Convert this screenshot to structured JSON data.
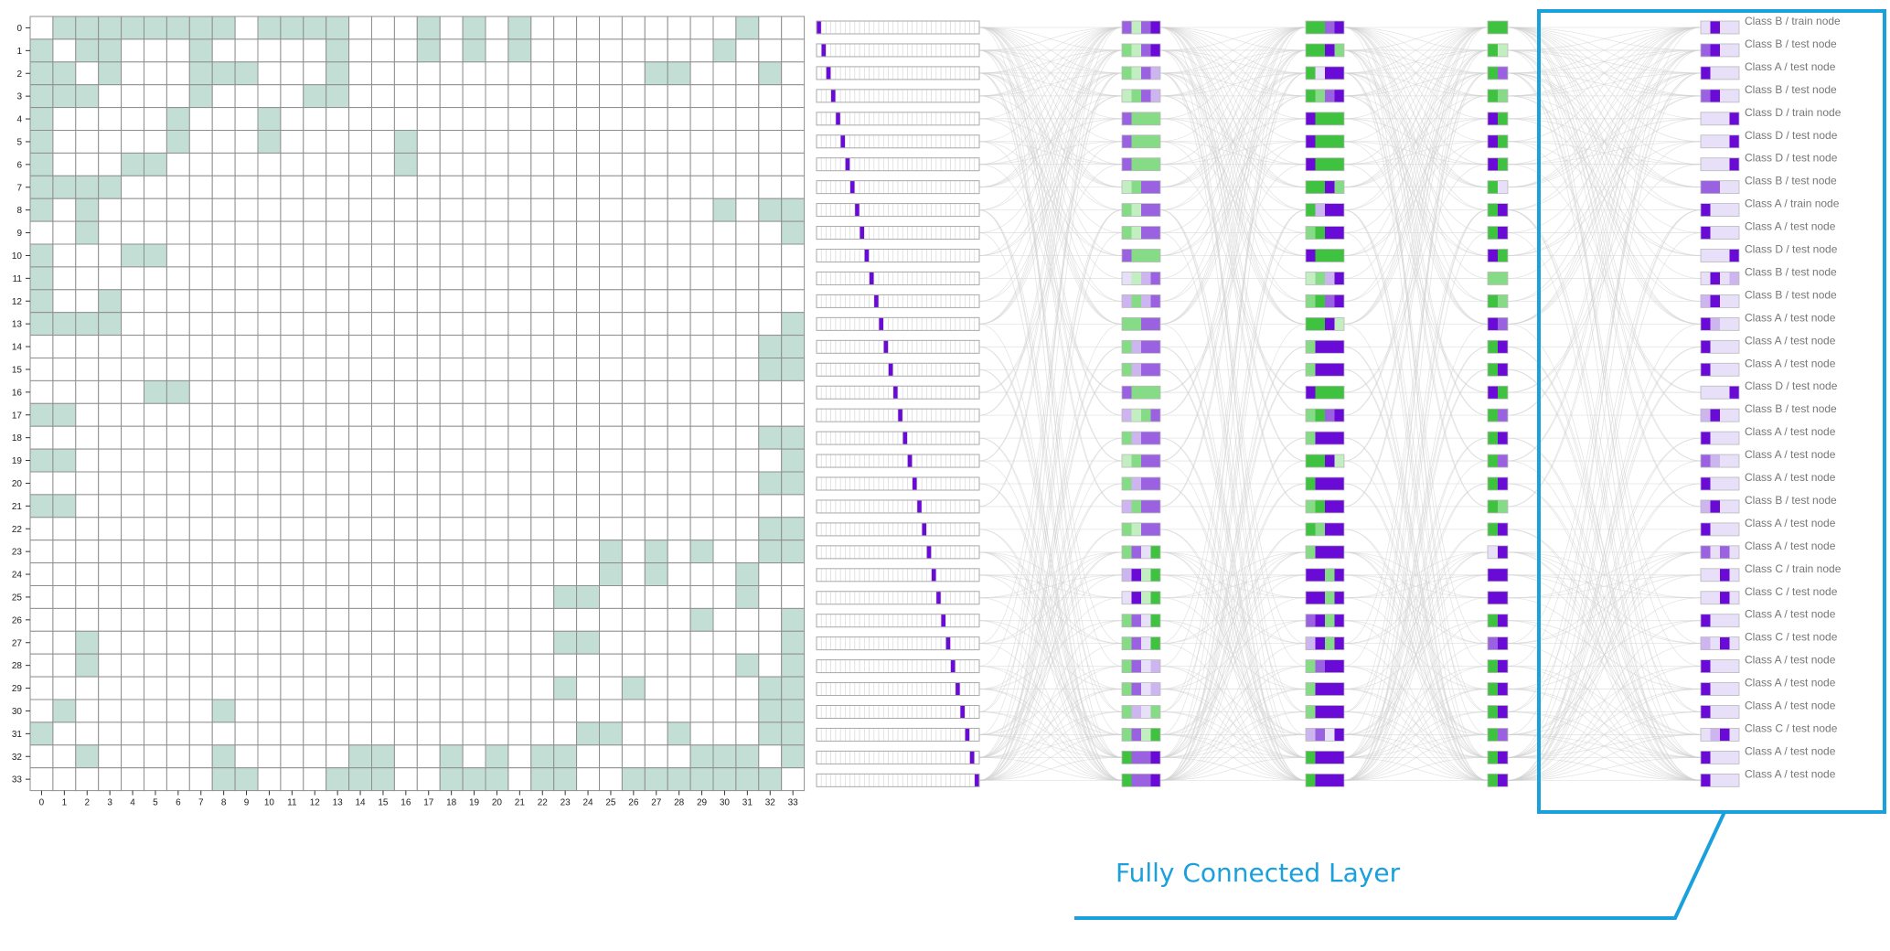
{
  "colors": {
    "matrix_fill": "#c3dfd5",
    "matrix_grid": "#8f8f8f",
    "purple_dark": "#6a0ad6",
    "purple_mid": "#9a62e0",
    "purple_light": "#cdb5ef",
    "purple_pale": "#e7e0f8",
    "green_dark": "#3fc23f",
    "green_mid": "#86db86",
    "green_light": "#c2eec2",
    "edge": "#cfcfcf",
    "highlight": "#1aa0dc"
  },
  "adjacency": {
    "node_ids": [
      "0",
      "1",
      "2",
      "3",
      "4",
      "5",
      "6",
      "7",
      "8",
      "9",
      "10",
      "11",
      "12",
      "13",
      "14",
      "15",
      "16",
      "17",
      "18",
      "19",
      "20",
      "21",
      "22",
      "23",
      "24",
      "25",
      "26",
      "27",
      "28",
      "29",
      "30",
      "31",
      "32",
      "33"
    ],
    "edges": [
      [
        0,
        1
      ],
      [
        0,
        2
      ],
      [
        0,
        3
      ],
      [
        0,
        4
      ],
      [
        0,
        5
      ],
      [
        0,
        6
      ],
      [
        0,
        7
      ],
      [
        0,
        8
      ],
      [
        0,
        10
      ],
      [
        0,
        11
      ],
      [
        0,
        12
      ],
      [
        0,
        13
      ],
      [
        0,
        17
      ],
      [
        0,
        19
      ],
      [
        0,
        21
      ],
      [
        0,
        31
      ],
      [
        1,
        2
      ],
      [
        1,
        3
      ],
      [
        1,
        7
      ],
      [
        1,
        13
      ],
      [
        1,
        17
      ],
      [
        1,
        19
      ],
      [
        1,
        21
      ],
      [
        1,
        30
      ],
      [
        2,
        3
      ],
      [
        2,
        7
      ],
      [
        2,
        8
      ],
      [
        2,
        9
      ],
      [
        2,
        13
      ],
      [
        2,
        27
      ],
      [
        2,
        28
      ],
      [
        2,
        32
      ],
      [
        3,
        7
      ],
      [
        3,
        12
      ],
      [
        3,
        13
      ],
      [
        4,
        6
      ],
      [
        4,
        10
      ],
      [
        5,
        6
      ],
      [
        5,
        10
      ],
      [
        5,
        16
      ],
      [
        6,
        16
      ],
      [
        8,
        30
      ],
      [
        8,
        32
      ],
      [
        8,
        33
      ],
      [
        9,
        33
      ],
      [
        13,
        33
      ],
      [
        14,
        32
      ],
      [
        14,
        33
      ],
      [
        15,
        32
      ],
      [
        15,
        33
      ],
      [
        18,
        32
      ],
      [
        18,
        33
      ],
      [
        19,
        33
      ],
      [
        20,
        32
      ],
      [
        20,
        33
      ],
      [
        22,
        32
      ],
      [
        22,
        33
      ],
      [
        23,
        25
      ],
      [
        23,
        27
      ],
      [
        23,
        29
      ],
      [
        23,
        32
      ],
      [
        23,
        33
      ],
      [
        24,
        25
      ],
      [
        24,
        27
      ],
      [
        24,
        31
      ],
      [
        25,
        31
      ],
      [
        26,
        29
      ],
      [
        26,
        33
      ],
      [
        27,
        33
      ],
      [
        28,
        31
      ],
      [
        28,
        33
      ],
      [
        29,
        32
      ],
      [
        29,
        33
      ],
      [
        30,
        32
      ],
      [
        30,
        33
      ],
      [
        31,
        32
      ],
      [
        31,
        33
      ],
      [
        32,
        33
      ]
    ]
  },
  "layers": {
    "input": {
      "one_hot_index": [
        0,
        1,
        2,
        3,
        4,
        5,
        6,
        7,
        8,
        9,
        10,
        11,
        12,
        13,
        14,
        15,
        16,
        17,
        18,
        19,
        20,
        21,
        22,
        23,
        24,
        25,
        26,
        27,
        28,
        29,
        30,
        31,
        32,
        33
      ]
    },
    "hidden_1": [
      [
        "pm",
        "gl",
        "pm",
        "pd"
      ],
      [
        "gm",
        "gl",
        "pm",
        "pd"
      ],
      [
        "gm",
        "gl",
        "pm",
        "pl"
      ],
      [
        "gl",
        "gm",
        "pm",
        "pl"
      ],
      [
        "pm",
        "gm",
        "gm",
        "gm"
      ],
      [
        "pm",
        "gm",
        "gm",
        "gm"
      ],
      [
        "pm",
        "gm",
        "gm",
        "gm"
      ],
      [
        "gl",
        "gm",
        "pm",
        "pm"
      ],
      [
        "gm",
        "gl",
        "pm",
        "pm"
      ],
      [
        "gm",
        "gl",
        "pm",
        "pm"
      ],
      [
        "pm",
        "gm",
        "gm",
        "gm"
      ],
      [
        "pp",
        "gl",
        "pl",
        "pm"
      ],
      [
        "pl",
        "gm",
        "pl",
        "pm"
      ],
      [
        "gm",
        "gm",
        "pm",
        "pm"
      ],
      [
        "gm",
        "pl",
        "pm",
        "pm"
      ],
      [
        "gm",
        "pl",
        "pm",
        "pm"
      ],
      [
        "pm",
        "gm",
        "gm",
        "gm"
      ],
      [
        "pl",
        "gl",
        "gm",
        "pm"
      ],
      [
        "gm",
        "pl",
        "pm",
        "pm"
      ],
      [
        "gl",
        "gm",
        "pm",
        "pm"
      ],
      [
        "gm",
        "pl",
        "pm",
        "pm"
      ],
      [
        "pl",
        "gm",
        "pm",
        "pm"
      ],
      [
        "gm",
        "gl",
        "pm",
        "pm"
      ],
      [
        "gm",
        "pm",
        "pp",
        "gd"
      ],
      [
        "pl",
        "pd",
        "gl",
        "gd"
      ],
      [
        "pp",
        "pd",
        "gl",
        "gd"
      ],
      [
        "gm",
        "pm",
        "pp",
        "gd"
      ],
      [
        "gm",
        "pm",
        "pp",
        "gd"
      ],
      [
        "gm",
        "pm",
        "pp",
        "pl"
      ],
      [
        "gm",
        "pm",
        "pp",
        "pl"
      ],
      [
        "gm",
        "pl",
        "pp",
        "gm"
      ],
      [
        "gm",
        "pm",
        "gl",
        "gd"
      ],
      [
        "gd",
        "pm",
        "pm",
        "pd"
      ],
      [
        "gd",
        "pm",
        "pm",
        "pd"
      ]
    ],
    "hidden_2": [
      [
        "gd",
        "gd",
        "pm",
        "pd"
      ],
      [
        "gd",
        "gd",
        "pd",
        "gm"
      ],
      [
        "gd",
        "pp",
        "pd",
        "pd"
      ],
      [
        "gd",
        "gm",
        "pm",
        "pd"
      ],
      [
        "pd",
        "gd",
        "gd",
        "gd"
      ],
      [
        "pd",
        "gd",
        "gd",
        "gd"
      ],
      [
        "pd",
        "gd",
        "gd",
        "gd"
      ],
      [
        "gd",
        "gd",
        "pd",
        "gm"
      ],
      [
        "gd",
        "pl",
        "pd",
        "pd"
      ],
      [
        "gm",
        "gd",
        "pd",
        "pd"
      ],
      [
        "pd",
        "gd",
        "gd",
        "gd"
      ],
      [
        "gl",
        "gm",
        "pl",
        "pd"
      ],
      [
        "gm",
        "gd",
        "pm",
        "pd"
      ],
      [
        "gd",
        "gd",
        "pd",
        "gl"
      ],
      [
        "gm",
        "pd",
        "pd",
        "pd"
      ],
      [
        "gm",
        "pd",
        "pd",
        "pd"
      ],
      [
        "pd",
        "gd",
        "gd",
        "gd"
      ],
      [
        "gm",
        "gd",
        "pm",
        "pd"
      ],
      [
        "gm",
        "pd",
        "pd",
        "pd"
      ],
      [
        "gd",
        "gd",
        "pd",
        "gl"
      ],
      [
        "gd",
        "pd",
        "pd",
        "pd"
      ],
      [
        "gm",
        "gd",
        "pd",
        "pd"
      ],
      [
        "gd",
        "gm",
        "pd",
        "pd"
      ],
      [
        "gm",
        "pd",
        "pd",
        "pd"
      ],
      [
        "pd",
        "pd",
        "gm",
        "pd"
      ],
      [
        "pd",
        "pd",
        "gm",
        "pd"
      ],
      [
        "pm",
        "pd",
        "gm",
        "pd"
      ],
      [
        "pl",
        "pd",
        "gm",
        "pd"
      ],
      [
        "gm",
        "pm",
        "pd",
        "pd"
      ],
      [
        "gm",
        "pd",
        "pd",
        "pd"
      ],
      [
        "gm",
        "pd",
        "pd",
        "pd"
      ],
      [
        "pl",
        "pm",
        "pp",
        "pd"
      ],
      [
        "gd",
        "pd",
        "pd",
        "pd"
      ],
      [
        "gd",
        "pd",
        "pd",
        "pd"
      ]
    ],
    "hidden_3": [
      [
        "gd",
        "gd"
      ],
      [
        "gd",
        "gl"
      ],
      [
        "gd",
        "pm"
      ],
      [
        "gd",
        "gm"
      ],
      [
        "pd",
        "gd"
      ],
      [
        "pd",
        "gd"
      ],
      [
        "pd",
        "gd"
      ],
      [
        "gd",
        "pp"
      ],
      [
        "gd",
        "pd"
      ],
      [
        "gd",
        "pd"
      ],
      [
        "pd",
        "gd"
      ],
      [
        "gm",
        "gm"
      ],
      [
        "gd",
        "gm"
      ],
      [
        "pd",
        "pm"
      ],
      [
        "gd",
        "pd"
      ],
      [
        "gd",
        "pd"
      ],
      [
        "pd",
        "gd"
      ],
      [
        "gd",
        "pm"
      ],
      [
        "gd",
        "pd"
      ],
      [
        "gd",
        "pm"
      ],
      [
        "gd",
        "pd"
      ],
      [
        "gd",
        "gm"
      ],
      [
        "gd",
        "pd"
      ],
      [
        "pp",
        "pd"
      ],
      [
        "pd",
        "pd"
      ],
      [
        "pd",
        "pd"
      ],
      [
        "gd",
        "pd"
      ],
      [
        "pm",
        "pd"
      ],
      [
        "gd",
        "pd"
      ],
      [
        "gd",
        "pd"
      ],
      [
        "gd",
        "pd"
      ],
      [
        "gd",
        "pm"
      ],
      [
        "gd",
        "pd"
      ],
      [
        "gd",
        "pd"
      ]
    ],
    "output": [
      [
        "pp",
        "pd",
        "pp",
        "pp"
      ],
      [
        "pm",
        "pd",
        "pp",
        "pp"
      ],
      [
        "pd",
        "pp",
        "pp",
        "pp"
      ],
      [
        "pm",
        "pd",
        "pp",
        "pp"
      ],
      [
        "pp",
        "pp",
        "pp",
        "pd"
      ],
      [
        "pp",
        "pp",
        "pp",
        "pd"
      ],
      [
        "pp",
        "pp",
        "pp",
        "pd"
      ],
      [
        "pm",
        "pm",
        "pp",
        "pp"
      ],
      [
        "pd",
        "pp",
        "pp",
        "pp"
      ],
      [
        "pd",
        "pp",
        "pp",
        "pp"
      ],
      [
        "pp",
        "pp",
        "pp",
        "pd"
      ],
      [
        "pp",
        "pd",
        "pp",
        "pl"
      ],
      [
        "pl",
        "pd",
        "pp",
        "pp"
      ],
      [
        "pd",
        "pl",
        "pp",
        "pp"
      ],
      [
        "pd",
        "pp",
        "pp",
        "pp"
      ],
      [
        "pd",
        "pp",
        "pp",
        "pp"
      ],
      [
        "pp",
        "pp",
        "pp",
        "pd"
      ],
      [
        "pl",
        "pd",
        "pp",
        "pp"
      ],
      [
        "pd",
        "pp",
        "pp",
        "pp"
      ],
      [
        "pm",
        "pl",
        "pp",
        "pp"
      ],
      [
        "pd",
        "pp",
        "pp",
        "pp"
      ],
      [
        "pl",
        "pd",
        "pp",
        "pp"
      ],
      [
        "pd",
        "pp",
        "pp",
        "pp"
      ],
      [
        "pm",
        "pp",
        "pm",
        "pp"
      ],
      [
        "pp",
        "pp",
        "pd",
        "pp"
      ],
      [
        "pp",
        "pp",
        "pd",
        "pp"
      ],
      [
        "pd",
        "pp",
        "pp",
        "pp"
      ],
      [
        "pl",
        "pp",
        "pd",
        "pp"
      ],
      [
        "pd",
        "pp",
        "pp",
        "pp"
      ],
      [
        "pd",
        "pp",
        "pp",
        "pp"
      ],
      [
        "pd",
        "pp",
        "pp",
        "pp"
      ],
      [
        "pp",
        "pl",
        "pd",
        "pp"
      ],
      [
        "pd",
        "pp",
        "pp",
        "pp"
      ],
      [
        "pd",
        "pp",
        "pp",
        "pp"
      ]
    ]
  },
  "node_labels": [
    "Class B / train node",
    "Class B / test node",
    "Class A / test node",
    "Class B / test node",
    "Class D / train node",
    "Class D / test node",
    "Class D / test node",
    "Class B / test node",
    "Class A / train node",
    "Class A / test node",
    "Class D / test node",
    "Class B / test node",
    "Class B / test node",
    "Class A / test node",
    "Class A / test node",
    "Class A / test node",
    "Class D / test node",
    "Class B / test node",
    "Class A / test node",
    "Class A / test node",
    "Class A / test node",
    "Class B / test node",
    "Class A / test node",
    "Class A / test node",
    "Class C / train node",
    "Class C / test node",
    "Class A / test node",
    "Class C / test node",
    "Class A / test node",
    "Class A / test node",
    "Class A / test node",
    "Class C / test node",
    "Class A / test node",
    "Class A / test node"
  ],
  "annotation": {
    "caption": "Fully Connected Layer"
  }
}
